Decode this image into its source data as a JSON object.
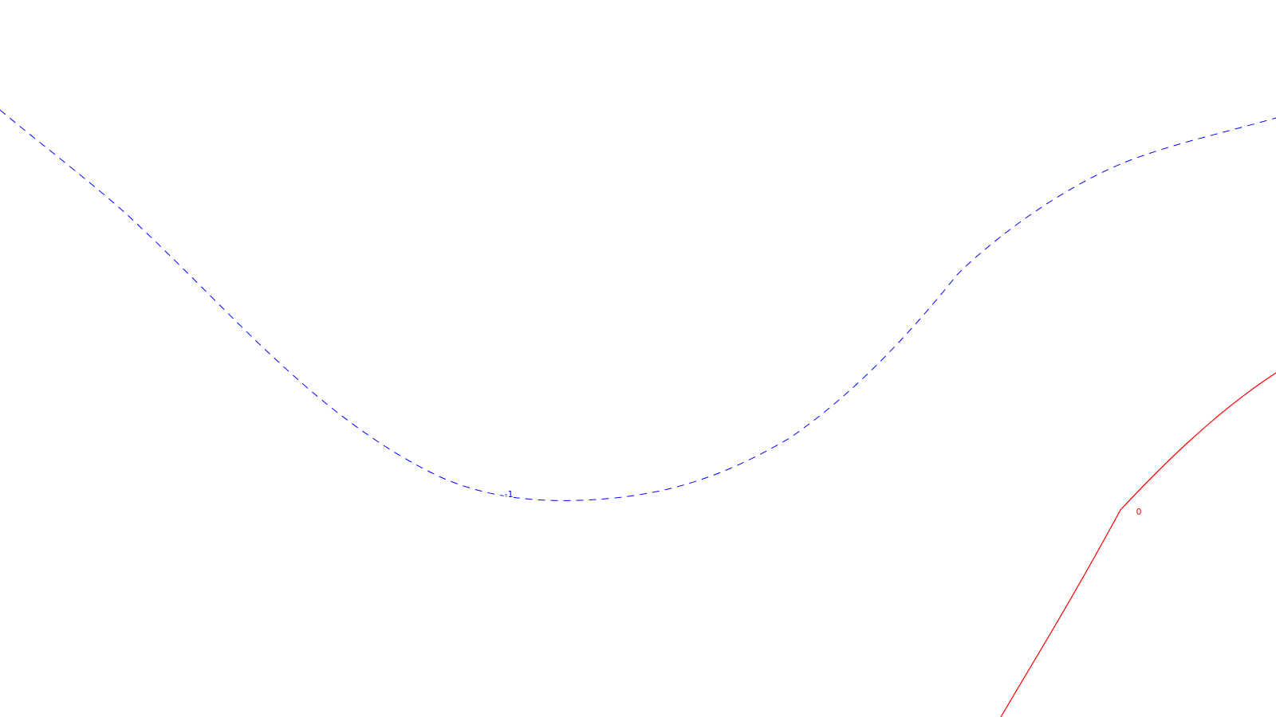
{
  "map": {
    "background": "#ffffff",
    "contours": [
      {
        "id": "contour-minus-1",
        "level_label": "-1",
        "color": "#0000ff",
        "style": "dashed"
      },
      {
        "id": "contour-zero",
        "level_label": "0",
        "color": "#ff0000",
        "style": "solid"
      }
    ]
  }
}
